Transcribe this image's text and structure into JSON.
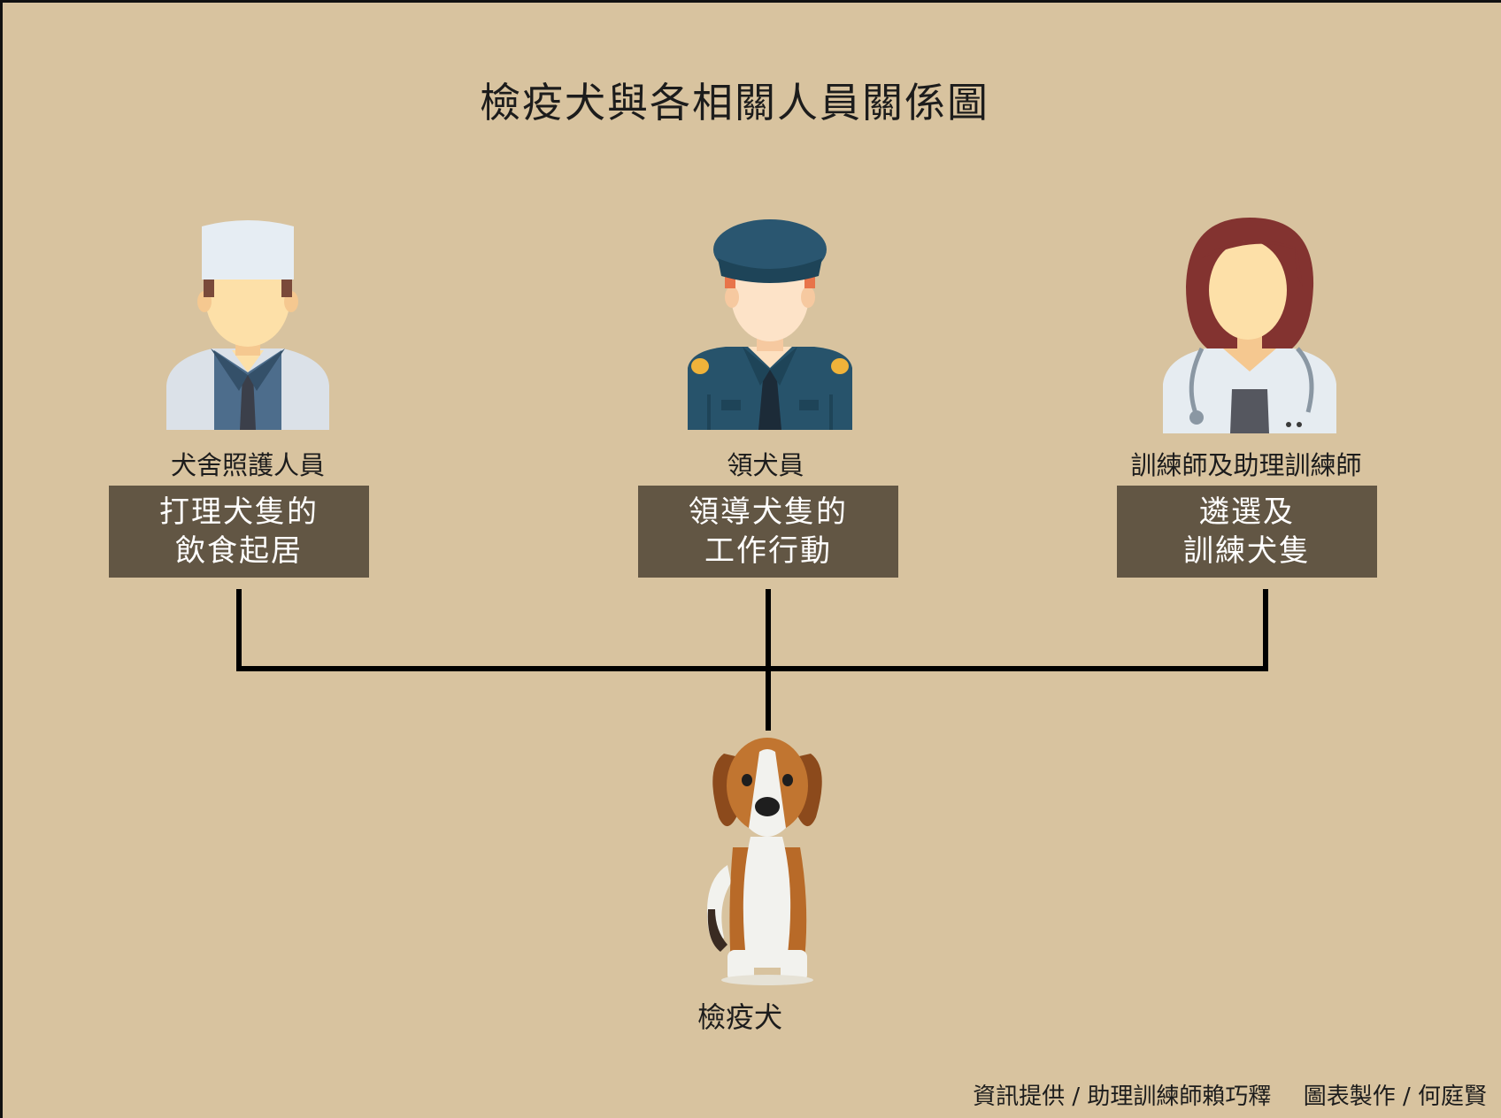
{
  "title": "檢疫犬與各相關人員關係圖",
  "nodes": [
    {
      "role": "犬舍照護人員",
      "duty_line1": "打理犬隻的",
      "duty_line2": "飲食起居"
    },
    {
      "role": "領犬員",
      "duty_line1": "領導犬隻的",
      "duty_line2": "工作行動"
    },
    {
      "role": "訓練師及助理訓練師",
      "duty_line1": "遴選及",
      "duty_line2": "訓練犬隻"
    }
  ],
  "dog_label": "檢疫犬",
  "credits": {
    "info": "資訊提供 / 助理訓練師賴巧釋",
    "chart": "圖表製作 / 何庭賢"
  },
  "colors": {
    "background": "#d8c39f",
    "duty_box": "#625644",
    "connector": "#000000"
  },
  "icons": [
    "caretaker-icon",
    "handler-icon",
    "trainer-icon",
    "beagle-dog-icon"
  ]
}
